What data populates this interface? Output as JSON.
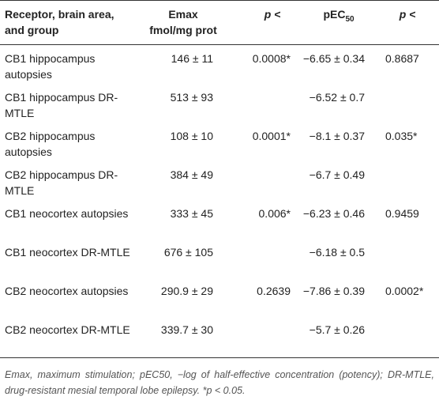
{
  "headers": {
    "group": "Receptor, brain area, and group",
    "emax_line1": "Emax",
    "emax_line2": "fmol/mg prot",
    "p1": "p <",
    "pec_main": "pEC",
    "pec_sub": "50",
    "p2": "p <"
  },
  "rows": [
    {
      "group": "CB1 hippocampus autopsies",
      "emax": "146 ± 11",
      "p1": "0.0008*",
      "pec50": "−6.65 ± 0.34",
      "p2": "0.8687"
    },
    {
      "group": "CB1 hippocampus DR-MTLE",
      "emax": "513 ± 93",
      "p1": "",
      "pec50": "−6.52 ± 0.7",
      "p2": ""
    },
    {
      "group": "CB2 hippocampus autopsies",
      "emax": "108 ± 10",
      "p1": "0.0001*",
      "pec50": "−8.1 ± 0.37",
      "p2": "0.035*"
    },
    {
      "group": "CB2 hippocampus DR-MTLE",
      "emax": "384 ± 49",
      "p1": "",
      "pec50": "−6.7 ± 0.49",
      "p2": ""
    },
    {
      "group": "CB1 neocortex autopsies",
      "emax": "333 ± 45",
      "p1": "0.006*",
      "pec50": "−6.23 ± 0.46",
      "p2": "0.9459"
    },
    {
      "group": "CB1 neocortex DR-MTLE",
      "emax": "676 ± 105",
      "p1": "",
      "pec50": "−6.18 ± 0.5",
      "p2": ""
    },
    {
      "group": "CB2 neocortex autopsies",
      "emax": "290.9 ± 29",
      "p1": "0.2639",
      "pec50": "−7.86 ± 0.39",
      "p2": "0.0002*"
    },
    {
      "group": "CB2 neocortex DR-MTLE",
      "emax": "339.7 ± 30",
      "p1": "",
      "pec50": "−5.7 ± 0.26",
      "p2": ""
    }
  ],
  "footnote": "Emax, maximum stimulation; pEC50, −log of half-effective concentration (potency); DR-MTLE, drug-resistant mesial temporal lobe epilepsy. *p < 0.05."
}
